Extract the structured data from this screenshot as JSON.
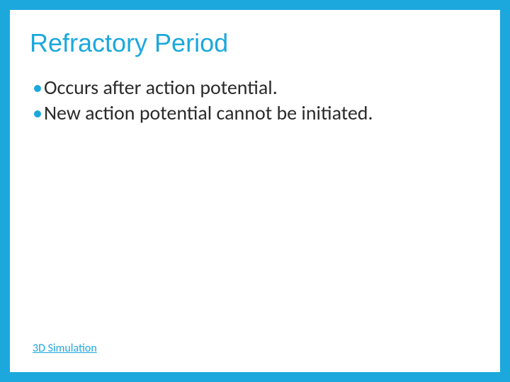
{
  "slide": {
    "title": "Refractory Period",
    "bullets": [
      {
        "text": "Occurs after action potential."
      },
      {
        "text": "New action potential cannot be initiated."
      }
    ],
    "link": {
      "label": "3D Simulation"
    }
  },
  "style": {
    "border_color": "#1ca8dd",
    "border_width": 14,
    "title_color": "#1ca8dd",
    "title_fontsize": 36,
    "bullet_marker_color": "#1ca8dd",
    "bullet_text_color": "#2b2b2b",
    "bullet_fontsize": 28,
    "link_color": "#1ca8dd",
    "link_fontsize": 16,
    "background_color": "#ffffff"
  }
}
